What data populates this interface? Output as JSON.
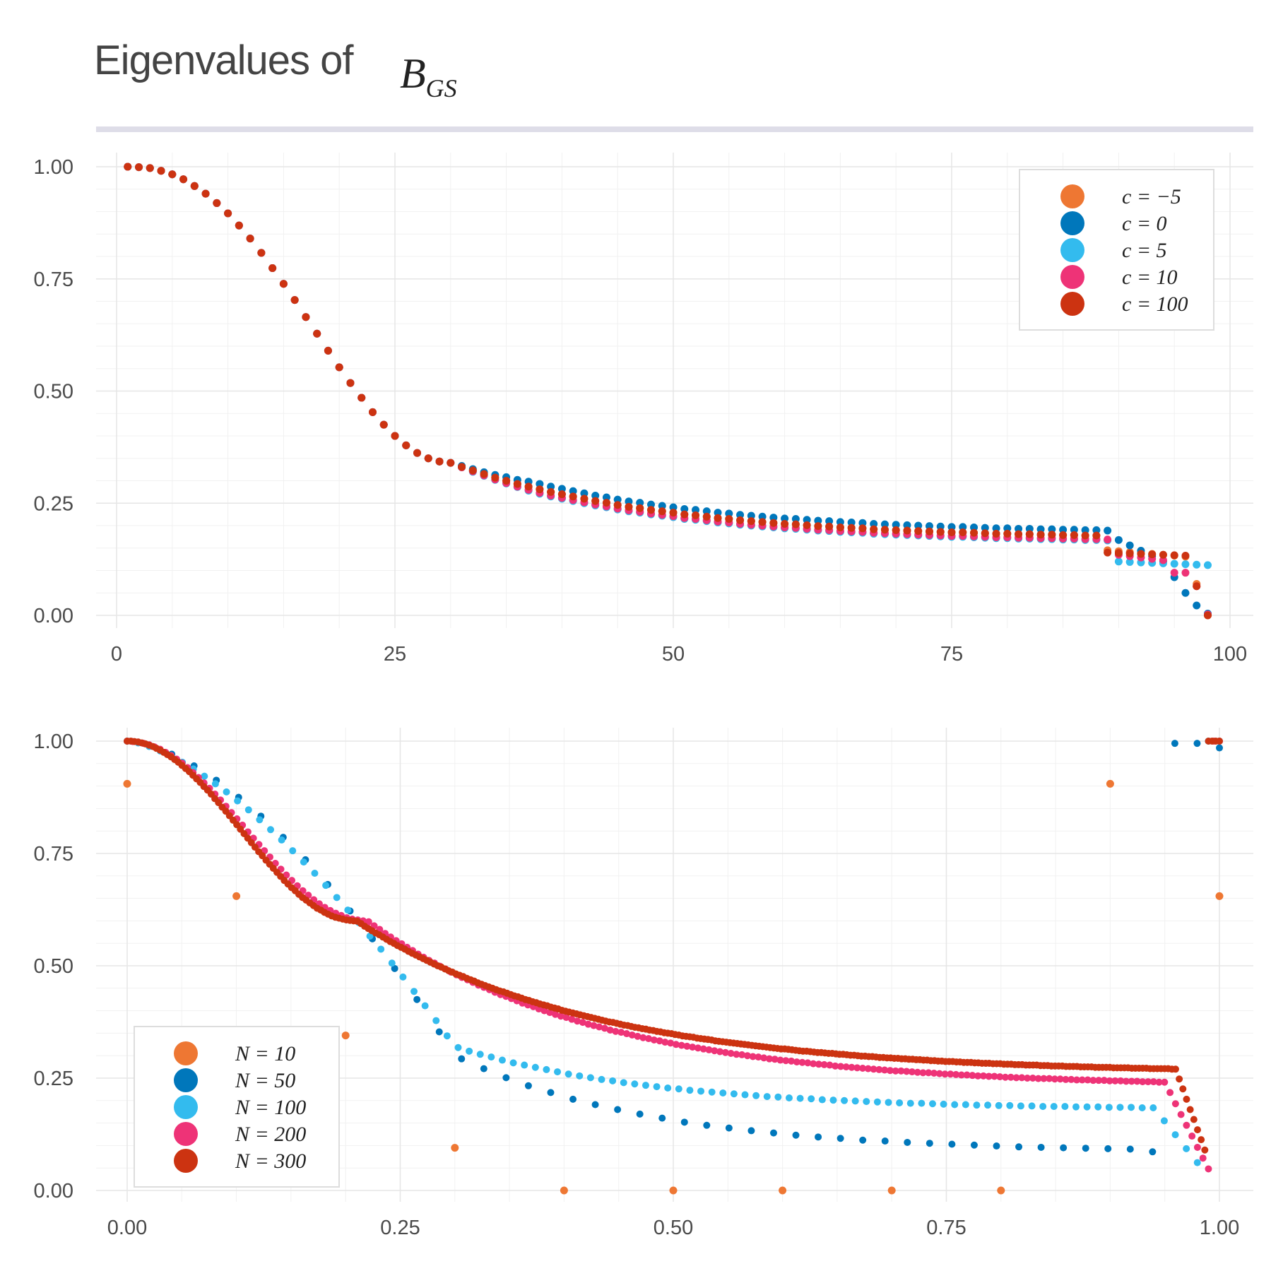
{
  "title": {
    "text": "Eigenvalues of",
    "math_symbol": "B",
    "math_subscript": "GS"
  },
  "chart_data": [
    {
      "type": "scatter",
      "xlim": [
        0,
        100
      ],
      "ylim": [
        0,
        1
      ],
      "x_ticks": [
        0,
        25,
        50,
        75,
        100
      ],
      "x_tick_labels": [
        "0",
        "25",
        "50",
        "75",
        "100"
      ],
      "y_ticks": [
        0,
        0.25,
        0.5,
        0.75,
        1.0
      ],
      "y_tick_labels": [
        "0.00",
        "0.25",
        "0.50",
        "0.75",
        "1.00"
      ],
      "grid": true,
      "legend_position": "top-right",
      "x_start": 1,
      "series": [
        {
          "name": "c = −5",
          "color": "#ee7733",
          "values": []
        },
        {
          "name": "c = 0",
          "color": "#0077bb",
          "values": []
        },
        {
          "name": "c = 5",
          "color": "#33bbee",
          "values": []
        },
        {
          "name": "c = 10",
          "color": "#ee3377",
          "values": []
        },
        {
          "name": "c = 100",
          "color": "#cc3311",
          "values": []
        }
      ]
    },
    {
      "type": "scatter",
      "xlim": [
        0,
        1
      ],
      "ylim": [
        0,
        1
      ],
      "x_ticks": [
        0,
        0.25,
        0.5,
        0.75,
        1.0
      ],
      "x_tick_labels": [
        "0.00",
        "0.25",
        "0.50",
        "0.75",
        "1.00"
      ],
      "y_ticks": [
        0,
        0.25,
        0.5,
        0.75,
        1.0
      ],
      "y_tick_labels": [
        "0.00",
        "0.25",
        "0.50",
        "0.75",
        "1.00"
      ],
      "grid": true,
      "legend_position": "bottom-left",
      "series": [
        {
          "name": "N = 10",
          "color": "#ee7733",
          "values": [
            0.905,
            0.655,
            0.345,
            0.095,
            0.0,
            0.0,
            0.0,
            0.0,
            0.0,
            0.905,
            0.655
          ]
        },
        {
          "name": "N = 50",
          "color": "#0077bb",
          "values": []
        },
        {
          "name": "N = 100",
          "color": "#33bbee",
          "values": []
        },
        {
          "name": "N = 200",
          "color": "#ee3377",
          "values": []
        },
        {
          "name": "N = 300",
          "color": "#cc3311",
          "values": []
        }
      ]
    }
  ]
}
